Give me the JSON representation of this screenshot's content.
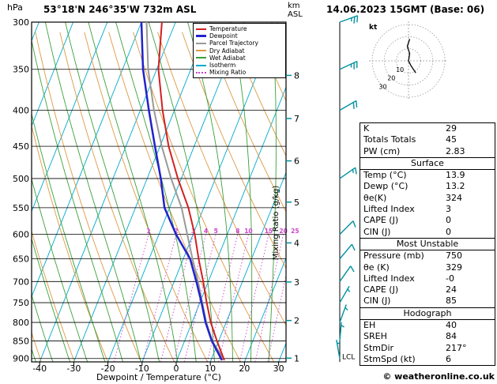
{
  "header": {
    "station": "53°18'N 246°35'W 732m ASL",
    "datetime": "14.06.2023 15GMT (Base: 06)"
  },
  "axes": {
    "pressure_unit": "hPa",
    "pressure_ticks_hPa": [
      300,
      350,
      400,
      450,
      500,
      550,
      600,
      650,
      700,
      750,
      800,
      850,
      900
    ],
    "temp_ticks_C": [
      -40,
      -30,
      -20,
      -10,
      0,
      10,
      20,
      30
    ],
    "xlabel": "Dewpoint / Temperature (°C)",
    "right_inner_label": "Mixing Ratio (g/kg)",
    "km_label_line1": "km",
    "km_label_line2": "ASL",
    "km_ticks": [
      [
        1,
        899
      ],
      [
        2,
        795
      ],
      [
        3,
        701
      ],
      [
        4,
        617
      ],
      [
        5,
        540
      ],
      [
        6,
        472
      ],
      [
        7,
        411
      ],
      [
        8,
        357
      ]
    ],
    "lcl_label": "LCL",
    "hodograph_unit": "kt"
  },
  "legend": [
    {
      "label": "Temperature",
      "color": "#d22020",
      "weight": 2,
      "style": "solid"
    },
    {
      "label": "Dewpoint",
      "color": "#2222cc",
      "weight": 3,
      "style": "solid"
    },
    {
      "label": "Parcel Trajectory",
      "color": "#999999",
      "weight": 2,
      "style": "solid"
    },
    {
      "label": "Dry Adiabat",
      "color": "#dd9944",
      "weight": 2,
      "style": "solid"
    },
    {
      "label": "Wet Adiabat",
      "color": "#3aa03a",
      "weight": 2,
      "style": "solid"
    },
    {
      "label": "Isotherm",
      "color": "#00aacc",
      "weight": 2,
      "style": "solid"
    },
    {
      "label": "Mixing Ratio",
      "color": "#cc44cc",
      "weight": 2,
      "style": "dotted"
    }
  ],
  "chart_data": {
    "type": "line",
    "subtype": "skew-t-log-p-sounding",
    "title": "53°18'N 246°35'W 732m ASL",
    "pressure_range_hPa": [
      300,
      910
    ],
    "temp_axis_range_C": [
      -40,
      30
    ],
    "sounding": {
      "pressure_hPa": [
        905,
        850,
        800,
        750,
        700,
        650,
        600,
        550,
        500,
        450,
        400,
        350,
        300
      ],
      "temperature_C": [
        13.9,
        9.5,
        5.5,
        2.0,
        -1.5,
        -5.5,
        -9.5,
        -14.5,
        -21.0,
        -27.5,
        -33.5,
        -39.5,
        -44.0
      ],
      "dewpoint_C": [
        13.2,
        8.0,
        4.0,
        0.5,
        -3.5,
        -8.0,
        -15.0,
        -21.5,
        -26.0,
        -31.5,
        -37.5,
        -44.0,
        -50.0
      ],
      "parcel_C": [
        13.9,
        8.1,
        4.2,
        0.7,
        -3.0,
        -7.3,
        -11.7,
        -16.5,
        -23.0,
        -29.5,
        -36.0,
        -42.5,
        -48.5
      ]
    },
    "wind_barbs": [
      {
        "hPa": 300,
        "dir_deg": 250,
        "kt": 25
      },
      {
        "hPa": 350,
        "dir_deg": 245,
        "kt": 25
      },
      {
        "hPa": 400,
        "dir_deg": 240,
        "kt": 20
      },
      {
        "hPa": 500,
        "dir_deg": 235,
        "kt": 15
      },
      {
        "hPa": 600,
        "dir_deg": 225,
        "kt": 10
      },
      {
        "hPa": 650,
        "dir_deg": 220,
        "kt": 10
      },
      {
        "hPa": 700,
        "dir_deg": 215,
        "kt": 10
      },
      {
        "hPa": 750,
        "dir_deg": 210,
        "kt": 5
      },
      {
        "hPa": 800,
        "dir_deg": 200,
        "kt": 5
      },
      {
        "hPa": 850,
        "dir_deg": 185,
        "kt": 5
      },
      {
        "hPa": 900,
        "dir_deg": 170,
        "kt": 5
      }
    ],
    "background": {
      "isotherms_C": {
        "min": -90,
        "max": 40,
        "step": 10
      },
      "dry_adiabats_K": {
        "min": 210,
        "max": 380,
        "step": 10
      },
      "wet_adiabats_C": {
        "min": -45,
        "max": 45,
        "step": 5
      },
      "mixing_ratio_gkg": [
        1,
        2,
        3,
        4,
        5,
        8,
        10,
        15,
        20,
        25
      ],
      "mixing_ratio_label_hPa": 600
    },
    "lcl_hPa": 895,
    "hodograph": {
      "unit": "kt",
      "rings_kt": [
        10,
        20,
        30
      ],
      "trace_uv_kt": [
        [
          6,
          -10
        ],
        [
          2,
          -4
        ],
        [
          0,
          0
        ],
        [
          1,
          6
        ],
        [
          -1,
          12
        ],
        [
          1,
          18
        ]
      ]
    },
    "colors": {
      "temperature": "#d22020",
      "dewpoint": "#2222cc",
      "parcel": "#999999",
      "dry_adiabat": "#dd9944",
      "wet_adiabat": "#3aa03a",
      "isotherm": "#00aacc",
      "mixing_ratio": "#cc44cc",
      "grid": "#000000",
      "wind": "#00929e"
    }
  },
  "table": {
    "sections": [
      {
        "title": null,
        "rows": [
          [
            "K",
            "29"
          ],
          [
            "Totals Totals",
            "45"
          ],
          [
            "PW (cm)",
            "2.83"
          ]
        ]
      },
      {
        "title": "Surface",
        "rows": [
          [
            "Temp (°C)",
            "13.9"
          ],
          [
            "Dewp (°C)",
            "13.2"
          ],
          [
            "θe(K)",
            "324"
          ],
          [
            "Lifted Index",
            "3"
          ],
          [
            "CAPE (J)",
            "0"
          ],
          [
            "CIN (J)",
            "0"
          ]
        ]
      },
      {
        "title": "Most Unstable",
        "rows": [
          [
            "Pressure (mb)",
            "750"
          ],
          [
            "θe (K)",
            "329"
          ],
          [
            "Lifted Index",
            "-0"
          ],
          [
            "CAPE (J)",
            "24"
          ],
          [
            "CIN (J)",
            "85"
          ]
        ]
      },
      {
        "title": "Hodograph",
        "rows": [
          [
            "EH",
            "40"
          ],
          [
            "SREH",
            "84"
          ],
          [
            "StmDir",
            "217°"
          ],
          [
            "StmSpd (kt)",
            "6"
          ]
        ]
      }
    ]
  },
  "footer": {
    "copyright": "© weatheronline.co.uk"
  }
}
